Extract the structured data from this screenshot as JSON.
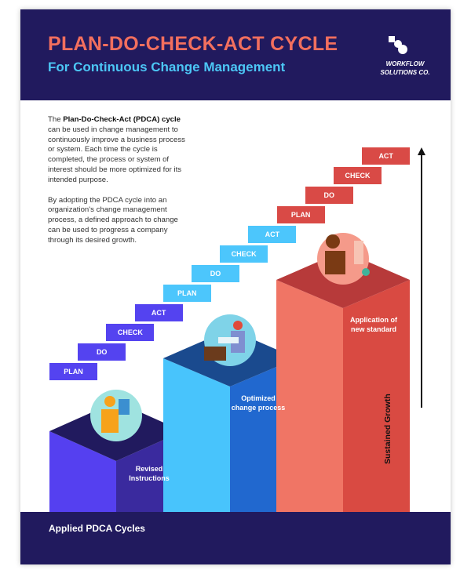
{
  "header": {
    "title": "PLAN-DO-CHECK-ACT CYCLE",
    "subtitle": "For Continuous Change Management",
    "logo_line1": "WORKFLOW",
    "logo_line2": "SOLUTIONS CO."
  },
  "intro": {
    "p1_prefix": "The ",
    "p1_bold": "Plan-Do-Check-Act (PDCA) cycle",
    "p1_rest": " can be used in change management to continuously improve a business process or system. Each time the cycle is completed, the process or system of interest should be more optimized for its intended purpose.",
    "p2": "By adopting the PDCA cycle into an organization's change management process, a defined approach to change can be used to progress a company through its desired growth."
  },
  "steps": [
    "PLAN",
    "DO",
    "CHECK",
    "ACT",
    "PLAN",
    "DO",
    "CHECK",
    "ACT",
    "PLAN",
    "DO",
    "CHECK",
    "ACT"
  ],
  "columns": [
    {
      "label": "Revised Instructions",
      "colors": {
        "left": "#5540f0",
        "right": "#3a2a9e",
        "top": "#211a5e"
      }
    },
    {
      "label": "Optimized change process",
      "colors": {
        "left": "#48c4fc",
        "right": "#2168cf",
        "top": "#1a4a8e"
      }
    },
    {
      "label": "Application of new standard",
      "colors": {
        "left": "#f07565",
        "right": "#d94a42",
        "top": "#b73a3a"
      }
    }
  ],
  "axes": {
    "y_label": "Sustained Growth",
    "x_label": "Applied PDCA Cycles"
  }
}
